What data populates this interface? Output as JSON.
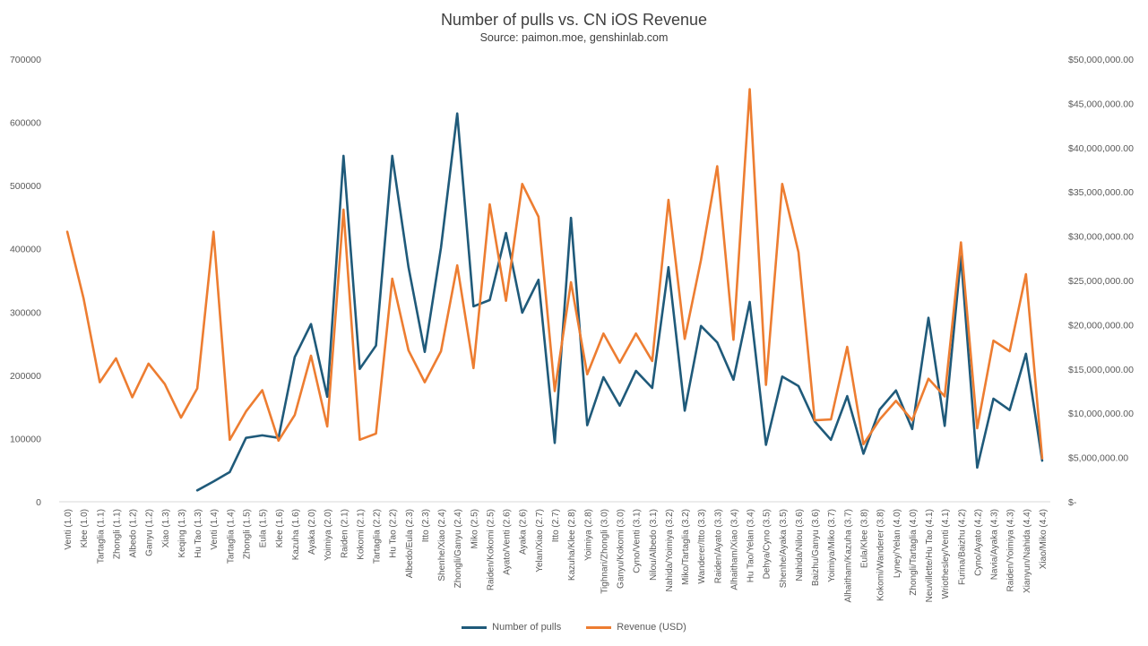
{
  "chart_data": {
    "type": "line",
    "title": "Number of pulls vs. CN iOS Revenue",
    "subtitle": "Source: paimon.moe, genshinlab.com",
    "categories": [
      "Venti (1.0)",
      "Klee (1.0)",
      "Tartaglia (1.1)",
      "Zhongli (1.1)",
      "Albedo (1.2)",
      "Ganyu (1.2)",
      "Xiao (1.3)",
      "Keqing (1.3)",
      "Hu Tao (1.3)",
      "Venti (1.4)",
      "Tartaglia (1.4)",
      "Zhongli (1.5)",
      "Eula (1.5)",
      "Klee (1.6)",
      "Kazuha (1.6)",
      "Ayaka (2.0)",
      "Yoimiya (2.0)",
      "Raiden (2.1)",
      "Kokomi (2.1)",
      "Tartaglia (2.2)",
      "Hu Tao (2.2)",
      "Albedo/Eula (2.3)",
      "Itto (2.3)",
      "Shenhe/Xiao (2.4)",
      "Zhongli/Ganyu (2.4)",
      "Miko (2.5)",
      "Raiden/Kokomi (2.5)",
      "Ayato/Venti (2.6)",
      "Ayaka (2.6)",
      "Yelan/Xiao (2.7)",
      "Itto (2.7)",
      "Kazuha/Klee (2.8)",
      "Yoimiya (2.8)",
      "Tighnari/Zhongli (3.0)",
      "Ganyu/Kokomi (3.0)",
      "Cyno/Venti (3.1)",
      "Nilou/Albedo (3.1)",
      "Nahida/Yoimiya (3.2)",
      "Miko/Tartaglia (3.2)",
      "Wanderer/Itto (3.3)",
      "Raiden/Ayato (3.3)",
      "Alhaitham/Xiao (3.4)",
      "Hu Tao/Yelan (3.4)",
      "Dehya/Cyno (3.5)",
      "Shenhe/Ayaka (3.5)",
      "Nahida/Nilou (3.6)",
      "Baizhu/Ganyu (3.6)",
      "Yoimiya/Miko (3.7)",
      "Alhaitham/Kazuha (3.7)",
      "Eula/Klee (3.8)",
      "Kokomi/Wanderer (3.8)",
      "Lyney/Yelan (4.0)",
      "Zhongli/Tartaglia (4.0)",
      "Neuvillette/Hu Tao (4.1)",
      "Wriothesley/Venti (4.1)",
      "Furina/Baizhu (4.2)",
      "Cyno/Ayato (4.2)",
      "Navia/Ayaka (4.3)",
      "Raiden/Yoimiya (4.3)",
      "Xianyun/Nahida (4.4)",
      "Xiao/Miko (4.4)"
    ],
    "series": [
      {
        "name": "Number of pulls",
        "axis": "left",
        "color": "#1F5A7A",
        "values": [
          null,
          null,
          null,
          null,
          null,
          null,
          null,
          null,
          18000,
          32000,
          47000,
          101000,
          105000,
          101000,
          229000,
          281000,
          166000,
          547000,
          210000,
          247000,
          547000,
          371000,
          237000,
          402000,
          614000,
          309000,
          319000,
          425000,
          299000,
          351000,
          93000,
          449000,
          121000,
          197000,
          152000,
          207000,
          180000,
          371000,
          144000,
          278000,
          252000,
          193000,
          316000,
          90000,
          198000,
          183000,
          127000,
          98000,
          167000,
          76000,
          146000,
          176000,
          115000,
          291000,
          120000,
          388000,
          54000,
          163000,
          145000,
          234000,
          65000
        ]
      },
      {
        "name": "Revenue (USD)",
        "axis": "right",
        "color": "#ED7D31",
        "values": [
          30500000,
          23000000,
          13500000,
          16200000,
          11800000,
          15600000,
          13300000,
          9500000,
          12800000,
          30500000,
          7000000,
          10200000,
          12600000,
          6900000,
          9800000,
          16500000,
          8500000,
          33000000,
          7000000,
          7700000,
          25200000,
          17100000,
          13500000,
          17000000,
          26700000,
          15100000,
          33600000,
          22700000,
          35900000,
          32200000,
          12500000,
          24800000,
          14400000,
          19000000,
          15700000,
          19000000,
          15900000,
          34100000,
          18400000,
          27300000,
          37900000,
          18300000,
          46600000,
          13200000,
          35900000,
          28200000,
          9200000,
          9300000,
          17500000,
          6500000,
          9300000,
          11400000,
          9200000,
          13900000,
          11900000,
          29300000,
          8300000,
          18200000,
          17000000,
          25700000,
          4900000
        ]
      }
    ],
    "y_left": {
      "min": 0,
      "max": 700000,
      "step": 100000,
      "ticks": [
        "0",
        "100000",
        "200000",
        "300000",
        "400000",
        "500000",
        "600000",
        "700000"
      ]
    },
    "y_right": {
      "min": 0,
      "max": 50000000,
      "step": 5000000,
      "ticks": [
        "$-",
        "$5,000,000.00",
        "$10,000,000.00",
        "$15,000,000.00",
        "$20,000,000.00",
        "$25,000,000.00",
        "$30,000,000.00",
        "$35,000,000.00",
        "$40,000,000.00",
        "$45,000,000.00",
        "$50,000,000.00"
      ]
    },
    "grid": false,
    "legend_position": "bottom"
  }
}
